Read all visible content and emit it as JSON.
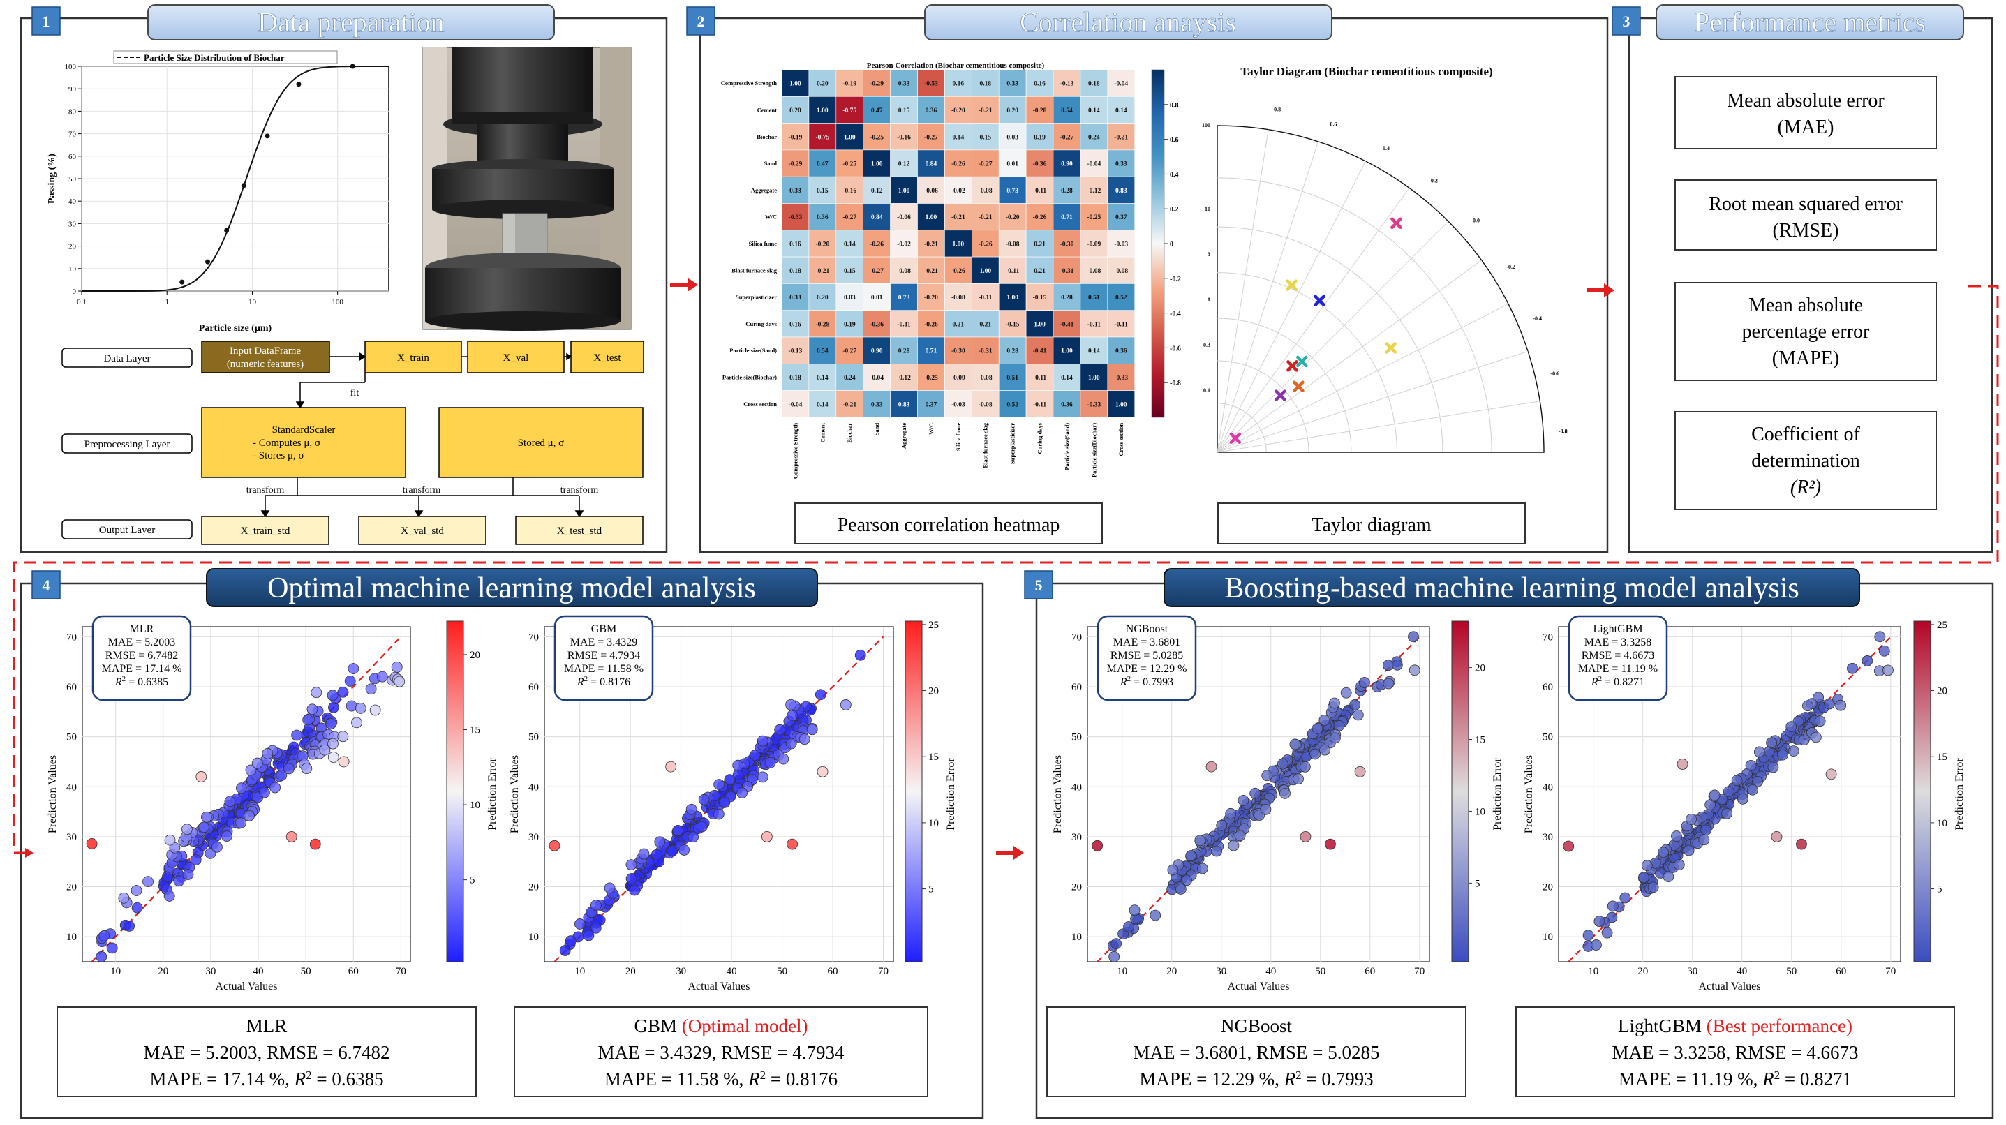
{
  "panels": {
    "p1": {
      "number": "1",
      "title": "Data preparation",
      "psd": {
        "legend": "Particle Size Distribution of Biochar",
        "xlabel": "Particle size (µm)",
        "ylabel": "Passing (%)",
        "xticks": [
          "0.1",
          "1",
          "10",
          "100"
        ],
        "yticks": [
          "0",
          "10",
          "20",
          "30",
          "40",
          "50",
          "60",
          "70",
          "80",
          "90",
          "100"
        ],
        "points": [
          {
            "x": 1.5,
            "y": 4
          },
          {
            "x": 3,
            "y": 13
          },
          {
            "x": 5,
            "y": 27
          },
          {
            "x": 8,
            "y": 47
          },
          {
            "x": 15,
            "y": 69
          },
          {
            "x": 35,
            "y": 92
          },
          {
            "x": 150,
            "y": 100
          }
        ]
      },
      "flow": {
        "layers": [
          "Data Layer",
          "Preprocessing Layer",
          "Output Layer"
        ],
        "input": [
          "Input DataFrame",
          "(numeric features)"
        ],
        "x_train": "X_train",
        "x_val": "X_val",
        "x_test": "X_test",
        "fit": "fit",
        "scaler_title": "StandardScaler",
        "scaler_l1": "-    Computes μ, σ",
        "scaler_l2": "-    Stores μ, σ",
        "stored": "Stored μ, σ",
        "transform": "transform",
        "outputs": [
          "X_train_std",
          "X_val_std",
          "X_test_std"
        ]
      }
    },
    "p2": {
      "number": "2",
      "title": "Correlation anaysis",
      "heatmap": {
        "title": "Pearson Correlation (Biochar cementitious composite)",
        "labels": [
          "Compressive Strength",
          "Cement",
          "Biochar",
          "Sand",
          "Aggregate",
          "W/C",
          "Silica fume",
          "Blast furnace slag",
          "Superplasticizer",
          "Curing days",
          "Particle size(Sand)",
          "Particle size(Biochar)",
          "Cross section"
        ],
        "colorbar_ticks": [
          "0.8",
          "0.6",
          "0.4",
          "0.2",
          "0",
          "-0.2",
          "-0.4",
          "-0.6",
          "-0.8"
        ],
        "matrix": [
          [
            "1.00",
            "0.20",
            "-0.19",
            "-0.29",
            "0.33",
            "-0.53",
            "0.16",
            "0.18",
            "0.33",
            "0.16",
            "-0.13",
            "0.18",
            "-0.04"
          ],
          [
            "0.20",
            "1.00",
            "-0.75",
            "0.47",
            "0.15",
            "0.36",
            "-0.20",
            "-0.21",
            "0.20",
            "-0.28",
            "0.54",
            "0.14",
            "0.14"
          ],
          [
            "-0.19",
            "-0.75",
            "1.00",
            "-0.25",
            "-0.16",
            "-0.27",
            "0.14",
            "0.15",
            "0.03",
            "0.19",
            "-0.27",
            "0.24",
            "-0.21"
          ],
          [
            "-0.29",
            "0.47",
            "-0.25",
            "1.00",
            "0.12",
            "0.84",
            "-0.26",
            "-0.27",
            "0.01",
            "-0.36",
            "0.90",
            "-0.04",
            "0.33"
          ],
          [
            "0.33",
            "0.15",
            "-0.16",
            "0.12",
            "1.00",
            "-0.06",
            "-0.02",
            "-0.08",
            "0.73",
            "-0.11",
            "0.28",
            "-0.12",
            "0.83"
          ],
          [
            "-0.53",
            "0.36",
            "-0.27",
            "0.84",
            "-0.06",
            "1.00",
            "-0.21",
            "-0.21",
            "-0.20",
            "-0.26",
            "0.71",
            "-0.25",
            "0.37"
          ],
          [
            "0.16",
            "-0.20",
            "0.14",
            "-0.26",
            "-0.02",
            "-0.21",
            "1.00",
            "-0.26",
            "-0.08",
            "0.21",
            "-0.30",
            "-0.09",
            "-0.03"
          ],
          [
            "0.18",
            "-0.21",
            "0.15",
            "-0.27",
            "-0.08",
            "-0.21",
            "-0.26",
            "1.00",
            "-0.11",
            "0.21",
            "-0.31",
            "-0.08",
            "-0.08"
          ],
          [
            "0.33",
            "0.20",
            "0.03",
            "0.01",
            "0.73",
            "-0.20",
            "-0.08",
            "-0.11",
            "1.00",
            "-0.15",
            "0.28",
            "0.51",
            "0.52"
          ],
          [
            "0.16",
            "-0.28",
            "0.19",
            "-0.36",
            "-0.11",
            "-0.26",
            "0.21",
            "0.21",
            "-0.15",
            "1.00",
            "-0.41",
            "-0.11",
            "-0.11"
          ],
          [
            "-0.13",
            "0.54",
            "-0.27",
            "0.90",
            "0.28",
            "0.71",
            "-0.30",
            "-0.31",
            "0.28",
            "-0.41",
            "1.00",
            "0.14",
            "0.36"
          ],
          [
            "0.18",
            "0.14",
            "0.24",
            "-0.04",
            "-0.12",
            "-0.25",
            "-0.09",
            "-0.08",
            "0.51",
            "-0.11",
            "0.14",
            "1.00",
            "-0.33"
          ],
          [
            "-0.04",
            "0.14",
            "-0.21",
            "0.33",
            "0.83",
            "0.37",
            "-0.03",
            "-0.08",
            "0.52",
            "-0.11",
            "0.36",
            "-0.33",
            "1.00"
          ]
        ]
      },
      "taylor": {
        "title": "Taylor Diagram (Biochar cementitious composite)",
        "angle_ticks": [
          "0.8",
          "0.6",
          "0.4",
          "0.2",
          "0.0",
          "-0.2",
          "-0.4",
          "-0.6",
          "-0.8"
        ],
        "radial_ticks": [
          "100",
          "10",
          "3",
          "1",
          "0.3",
          "0.1"
        ],
        "markers": [
          {
            "r": 0.56,
            "a": 66,
            "color": "#e8d44a"
          },
          {
            "r": 0.56,
            "a": 56,
            "color": "#2222cc"
          },
          {
            "r": 0.62,
            "a": 31,
            "color": "#e8d44a"
          },
          {
            "r": 0.38,
            "a": 47,
            "color": "#2ab0a8"
          },
          {
            "r": 0.35,
            "a": 49,
            "color": "#cc2222"
          },
          {
            "r": 0.26,
            "a": 42,
            "color": "#8833aa"
          },
          {
            "r": 0.32,
            "a": 39,
            "color": "#dd6622"
          },
          {
            "r": 0.07,
            "a": 38,
            "color": "#e03aa8"
          },
          {
            "r": 0.89,
            "a": 52,
            "color": "#e03a8a"
          }
        ]
      },
      "labels": [
        "Pearson correlation heatmap",
        "Taylor diagram"
      ]
    },
    "p3": {
      "number": "3",
      "title": "Performance metrics",
      "metrics": [
        [
          "Mean absolute error",
          "(MAE)"
        ],
        [
          "Root mean squared error",
          "(RMSE)"
        ],
        [
          "Mean absolute",
          "percentage error",
          "(MAPE)"
        ],
        [
          "Coefficient of",
          "determination",
          "(R²)"
        ]
      ]
    },
    "p4": {
      "number": "4",
      "title": "Optimal machine learning model analysis"
    },
    "p5": {
      "number": "5",
      "title": "Boosting-based machine learning model analysis"
    }
  },
  "models": [
    {
      "name": "MLR",
      "highlight": "",
      "mae": "5.2003",
      "rmse": "6.7482",
      "mape": "17.14",
      "r2": "0.6385",
      "cmax": 22,
      "cticks": [
        5,
        10,
        15,
        20
      ],
      "seed": 11,
      "spread": 6.8,
      "bias": 3
    },
    {
      "name": "GBM",
      "highlight": "(Optimal model)",
      "mae": "3.4329",
      "rmse": "4.7934",
      "mape": "11.58",
      "r2": "0.8176",
      "cmax": 25,
      "cticks": [
        5,
        10,
        15,
        20,
        25
      ],
      "seed": 23,
      "spread": 4.6,
      "bias": 1
    },
    {
      "name": "NGBoost",
      "highlight": "",
      "mae": "3.6801",
      "rmse": "5.0285",
      "mape": "12.29",
      "r2": "0.7993",
      "cmax": 23,
      "cticks": [
        5,
        10,
        15,
        20
      ],
      "seed": 37,
      "spread": 4.8,
      "bias": 1
    },
    {
      "name": "LightGBM",
      "highlight": "(Best performance)",
      "mae": "3.3258",
      "rmse": "4.6673",
      "mape": "11.19",
      "r2": "0.8271",
      "cmax": 25,
      "cticks": [
        5,
        10,
        15,
        20,
        25
      ],
      "seed": 51,
      "spread": 4.4,
      "bias": 0.5
    }
  ],
  "scatter_axes": {
    "xlabel": "Actual Values",
    "ylabel": "Prediction Values",
    "cbar_label": "Prediction Error",
    "ticks": [
      10,
      20,
      30,
      40,
      50,
      60,
      70
    ]
  },
  "text": {
    "mae_prefix": "MAE = ",
    "rmse_prefix": "RMSE = ",
    "mape_prefix": "MAPE = ",
    "r2_prefix": " = ",
    "percent": " %"
  }
}
